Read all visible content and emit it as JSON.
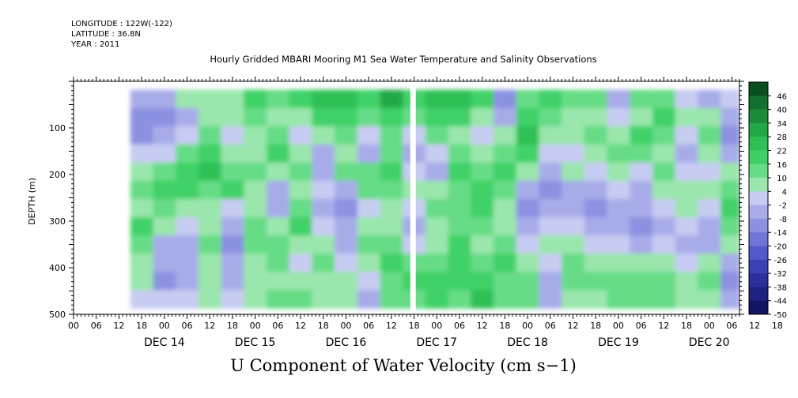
{
  "header": {
    "longitude": "LONGITUDE : 122W(-122)",
    "latitude": "LATITUDE : 36.8N",
    "year": "YEAR : 2011"
  },
  "plot_title": "Hourly Gridded MBARI Mooring M1 Sea Water Temperature and Salinity Observations",
  "variable_title": "U Component of Water Velocity (cm s−1)",
  "chart_data": {
    "type": "heatmap",
    "title": "Hourly Gridded MBARI Mooring M1 Sea Water Temperature and Salinity Observations",
    "variable": "U Component of Water Velocity (cm s−1)",
    "ylabel": "DEPTH (m)",
    "ylim": [
      500,
      0
    ],
    "y_axis_inverted": true,
    "y_ticks": [
      100,
      200,
      300,
      400,
      500
    ],
    "x_day_labels": [
      "DEC 14",
      "DEC 15",
      "DEC 16",
      "DEC 17",
      "DEC 18",
      "DEC 19",
      "DEC 20"
    ],
    "x_hour_ticks": [
      "00",
      "06",
      "12",
      "18",
      "00",
      "06",
      "12",
      "18",
      "00",
      "06",
      "12",
      "18",
      "00",
      "06",
      "12",
      "18",
      "00",
      "06",
      "12",
      "18",
      "00",
      "06",
      "12",
      "18",
      "00",
      "06",
      "12",
      "18",
      "00",
      "06",
      "12",
      "18"
    ],
    "x_range_hours": [
      "DEC 13 12:00",
      "DEC 20 20:00"
    ],
    "data_start": "DEC 14 03:00",
    "data_depth_range_m": [
      18,
      487
    ],
    "gap": "DEC 17 05:00",
    "colorbar_levels": [
      "46",
      "40",
      "34",
      "28",
      "22",
      "16",
      "10",
      "4",
      "-2",
      "-8",
      "-14",
      "-20",
      "-26",
      "-32",
      "-38",
      "-44",
      "-50"
    ],
    "colorbar_min": -50,
    "colorbar_max": 52,
    "colorbar_step": 6,
    "columns": [
      {
        "hour": 0,
        "values": [
          -8,
          -14,
          -14,
          -2,
          4,
          10,
          4,
          16,
          10,
          4,
          4,
          -2
        ]
      },
      {
        "hour": 6,
        "values": [
          -8,
          -14,
          -8,
          -2,
          10,
          16,
          10,
          4,
          -8,
          -8,
          -14,
          -2
        ]
      },
      {
        "hour": 12,
        "values": [
          4,
          -8,
          -2,
          10,
          16,
          16,
          4,
          -2,
          -8,
          -8,
          -8,
          -2
        ]
      },
      {
        "hour": 18,
        "values": [
          4,
          4,
          10,
          16,
          22,
          10,
          4,
          4,
          10,
          4,
          4,
          4
        ]
      },
      {
        "hour": 24,
        "values": [
          4,
          4,
          -2,
          4,
          10,
          16,
          -2,
          -8,
          -14,
          -8,
          -8,
          -2
        ]
      },
      {
        "hour": 30,
        "values": [
          16,
          10,
          4,
          4,
          10,
          4,
          4,
          10,
          10,
          4,
          4,
          4
        ]
      },
      {
        "hour": 36,
        "values": [
          10,
          4,
          10,
          16,
          4,
          -8,
          -8,
          4,
          10,
          10,
          4,
          10
        ]
      },
      {
        "hour": 42,
        "values": [
          16,
          4,
          -2,
          4,
          10,
          4,
          10,
          16,
          4,
          -2,
          4,
          10
        ]
      },
      {
        "hour": 48,
        "values": [
          22,
          16,
          4,
          -8,
          -8,
          -2,
          -8,
          -2,
          4,
          10,
          4,
          4
        ]
      },
      {
        "hour": 54,
        "values": [
          22,
          16,
          10,
          4,
          10,
          -8,
          -14,
          -8,
          -8,
          -2,
          4,
          4
        ]
      },
      {
        "hour": 60,
        "values": [
          16,
          10,
          -2,
          -8,
          10,
          10,
          -2,
          4,
          10,
          4,
          -2,
          -8
        ]
      },
      {
        "hour": 66,
        "values": [
          28,
          16,
          10,
          10,
          16,
          10,
          4,
          4,
          10,
          16,
          10,
          10
        ]
      },
      {
        "hour": 72,
        "values": [
          16,
          10,
          -2,
          -8,
          -2,
          4,
          -2,
          -8,
          -2,
          10,
          16,
          10
        ]
      },
      {
        "hour": 78,
        "values": [
          22,
          16,
          10,
          -2,
          -8,
          4,
          10,
          4,
          4,
          10,
          16,
          16
        ]
      },
      {
        "hour": 84,
        "values": [
          22,
          16,
          4,
          10,
          16,
          10,
          10,
          10,
          16,
          16,
          16,
          10
        ]
      },
      {
        "hour": 90,
        "values": [
          16,
          4,
          -2,
          4,
          10,
          16,
          16,
          10,
          4,
          10,
          16,
          22
        ]
      },
      {
        "hour": 96,
        "values": [
          -14,
          -8,
          4,
          10,
          16,
          10,
          4,
          4,
          10,
          16,
          10,
          10
        ]
      },
      {
        "hour": 102,
        "values": [
          10,
          16,
          22,
          16,
          4,
          -8,
          -14,
          -8,
          -2,
          4,
          10,
          10
        ]
      },
      {
        "hour": 108,
        "values": [
          16,
          10,
          4,
          -2,
          -8,
          -14,
          -8,
          -2,
          4,
          -2,
          -8,
          -8
        ]
      },
      {
        "hour": 114,
        "values": [
          10,
          4,
          4,
          -2,
          4,
          -8,
          -8,
          -2,
          4,
          10,
          10,
          4
        ]
      },
      {
        "hour": 120,
        "values": [
          10,
          4,
          10,
          4,
          -2,
          -8,
          -14,
          -8,
          -2,
          4,
          10,
          4
        ]
      },
      {
        "hour": 126,
        "values": [
          -8,
          -2,
          4,
          10,
          4,
          -2,
          -8,
          -8,
          -2,
          4,
          10,
          10
        ]
      },
      {
        "hour": 132,
        "values": [
          10,
          4,
          16,
          10,
          -2,
          -8,
          -8,
          -14,
          -8,
          4,
          10,
          10
        ]
      },
      {
        "hour": 138,
        "values": [
          10,
          16,
          10,
          4,
          10,
          4,
          -2,
          -8,
          -2,
          4,
          10,
          10
        ]
      },
      {
        "hour": 144,
        "values": [
          -2,
          4,
          -2,
          -8,
          -2,
          4,
          4,
          -2,
          -8,
          -2,
          4,
          4
        ]
      },
      {
        "hour": 150,
        "values": [
          -8,
          4,
          10,
          4,
          -2,
          4,
          -2,
          -8,
          -8,
          4,
          10,
          4
        ]
      },
      {
        "hour": 156,
        "values": [
          -2,
          -8,
          -14,
          -8,
          4,
          10,
          16,
          10,
          4,
          -8,
          -14,
          -8
        ]
      },
      {
        "hour": 162,
        "values": [
          -14,
          -8,
          4,
          4,
          -2,
          10,
          16,
          10,
          10,
          4,
          4,
          4
        ]
      }
    ]
  }
}
